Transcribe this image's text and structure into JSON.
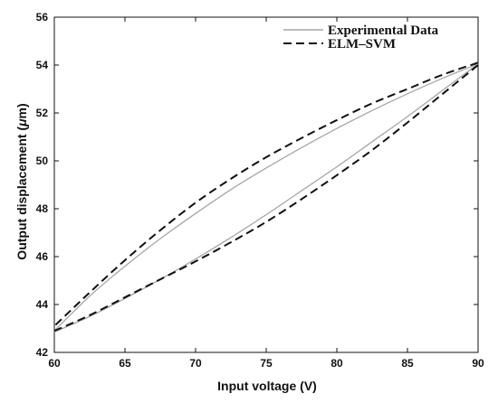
{
  "chart_data": {
    "type": "line",
    "title": "",
    "xlabel": "Input voltage (V)",
    "ylabel_parts": [
      "Output displacement (",
      "μ",
      "m)"
    ],
    "xlim": [
      60,
      90
    ],
    "ylim": [
      42,
      56
    ],
    "xticks": [
      60,
      65,
      70,
      75,
      80,
      85,
      90
    ],
    "yticks": [
      42,
      44,
      46,
      48,
      50,
      52,
      54,
      56
    ],
    "grid": false,
    "legend": "top-right",
    "series": [
      {
        "name": "Experimental Data",
        "style": "solid",
        "color": "#a6a6a6",
        "ascending": {
          "x": [
            60,
            62.5,
            65,
            67.5,
            70,
            72.5,
            75,
            77.5,
            80,
            82.5,
            85,
            87.5,
            90
          ],
          "y": [
            42.85,
            43.5,
            44.25,
            45.05,
            45.9,
            46.8,
            47.75,
            48.75,
            49.75,
            50.8,
            51.85,
            52.95,
            54.05
          ]
        },
        "descending": {
          "x": [
            90,
            87.5,
            85,
            82.5,
            80,
            77.5,
            75,
            72.5,
            70,
            67.5,
            65,
            62.5,
            60
          ],
          "y": [
            54.05,
            53.45,
            52.8,
            52.1,
            51.35,
            50.55,
            49.7,
            48.8,
            47.8,
            46.75,
            45.6,
            44.35,
            42.9
          ]
        }
      },
      {
        "name": "ELM–SVM",
        "style": "dashed",
        "color": "#111111",
        "ascending": {
          "x": [
            60,
            62.5,
            65,
            67.5,
            70,
            72.5,
            75,
            77.5,
            80,
            82.5,
            85,
            87.5,
            90
          ],
          "y": [
            42.9,
            43.55,
            44.3,
            45.05,
            45.8,
            46.6,
            47.45,
            48.4,
            49.4,
            50.45,
            51.6,
            52.8,
            54.0
          ]
        },
        "descending": {
          "x": [
            90,
            87.5,
            85,
            82.5,
            80,
            77.5,
            75,
            72.5,
            70,
            67.5,
            65,
            62.5,
            60
          ],
          "y": [
            54.1,
            53.6,
            53.0,
            52.4,
            51.7,
            50.95,
            50.15,
            49.25,
            48.25,
            47.1,
            45.85,
            44.5,
            43.1
          ]
        }
      }
    ]
  }
}
